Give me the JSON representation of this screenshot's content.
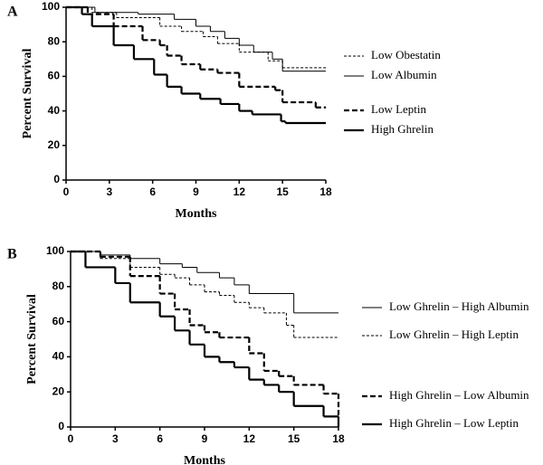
{
  "chart_data": [
    {
      "type": "step",
      "label": "A",
      "xlabel": "Months",
      "ylabel": "Percent  Survival",
      "xlim": [
        0,
        18
      ],
      "xticks": [
        0,
        3,
        6,
        9,
        12,
        15,
        18
      ],
      "ylim": [
        0,
        100
      ],
      "yticks": [
        0,
        20,
        40,
        60,
        80,
        100
      ],
      "series": [
        {
          "name": "Low Obestatin",
          "color": "#000000",
          "line_style": "dashed",
          "line_weight": "thin",
          "x": [
            0,
            1.8,
            3.5,
            6.5,
            8,
            9.5,
            10.5,
            12,
            14,
            15,
            18
          ],
          "values": [
            100,
            97,
            94,
            89,
            86,
            83,
            79,
            74,
            69,
            65,
            65
          ]
        },
        {
          "name": "Low Albumin",
          "color": "#000000",
          "line_style": "solid",
          "line_weight": "thin",
          "x": [
            0,
            2,
            5,
            7.5,
            9,
            10,
            11,
            12,
            13,
            14.3,
            15,
            18
          ],
          "values": [
            100,
            97,
            96,
            93,
            89,
            86,
            82,
            78,
            74,
            70,
            63,
            63
          ]
        },
        {
          "name": "Low Leptin",
          "color": "#000000",
          "line_style": "dashed",
          "line_weight": "thick",
          "x": [
            0,
            1.5,
            3.3,
            5.3,
            6.5,
            7,
            8,
            9.3,
            10.5,
            12,
            14.5,
            15,
            17.3,
            18
          ],
          "values": [
            100,
            96,
            89,
            81,
            78,
            72,
            67,
            64,
            62,
            54,
            52,
            45,
            42,
            42
          ]
        },
        {
          "name": "High Ghrelin",
          "color": "#000000",
          "line_style": "solid",
          "line_weight": "thick",
          "x": [
            0,
            1.1,
            1.8,
            3.3,
            4.7,
            6.1,
            7,
            8,
            9.3,
            10.7,
            12,
            12.9,
            14.9,
            15.2,
            18
          ],
          "values": [
            100,
            96,
            89,
            78,
            70,
            61,
            54,
            50,
            47,
            44,
            40,
            38,
            34,
            33,
            33
          ]
        }
      ]
    },
    {
      "type": "step",
      "label": "B",
      "xlabel": "Months",
      "ylabel": "Percent  Survival",
      "xlim": [
        0,
        18
      ],
      "xticks": [
        0,
        3,
        6,
        9,
        12,
        15,
        18
      ],
      "ylim": [
        0,
        100
      ],
      "yticks": [
        0,
        20,
        40,
        60,
        80,
        100
      ],
      "series": [
        {
          "name": "Low Ghrelin – High Albumin",
          "color": "#000000",
          "line_style": "solid",
          "line_weight": "thin",
          "x": [
            0,
            2,
            4,
            6,
            7.5,
            8.5,
            10,
            11,
            12,
            15,
            18
          ],
          "values": [
            100,
            98,
            96,
            93,
            91,
            88,
            85,
            81,
            76,
            65,
            65
          ]
        },
        {
          "name": "Low Ghrelin – High Leptin",
          "color": "#000000",
          "line_style": "dashed",
          "line_weight": "thin",
          "x": [
            0,
            2,
            4,
            6,
            7,
            8,
            9,
            10,
            11,
            12,
            13,
            14.5,
            15,
            18
          ],
          "values": [
            100,
            96,
            91,
            87,
            85,
            81,
            77,
            75,
            71,
            68,
            65,
            58,
            51,
            51
          ]
        },
        {
          "name": "High Ghrelin – Low Albumin",
          "color": "#000000",
          "line_style": "dashed",
          "line_weight": "thick",
          "x": [
            0,
            2,
            4,
            6,
            7,
            8,
            9,
            10,
            12,
            13,
            14,
            15,
            17,
            18
          ],
          "values": [
            100,
            97,
            86,
            76,
            67,
            58,
            54,
            51,
            42,
            32,
            29,
            24,
            19,
            5
          ]
        },
        {
          "name": "High Ghrelin – Low Leptin",
          "color": "#000000",
          "line_style": "solid",
          "line_weight": "thick",
          "x": [
            0,
            1,
            3,
            4,
            6,
            7,
            8,
            9,
            10,
            11,
            12,
            13,
            14,
            15,
            17,
            18
          ],
          "values": [
            100,
            91,
            82,
            71,
            63,
            55,
            47,
            40,
            37,
            34,
            27,
            24,
            20,
            12,
            6,
            0
          ]
        }
      ]
    }
  ]
}
